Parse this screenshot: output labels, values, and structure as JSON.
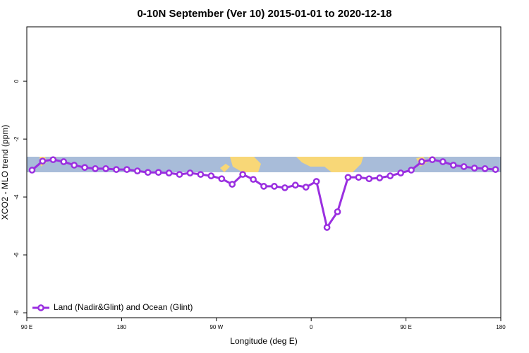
{
  "chart_data": {
    "type": "line",
    "title": "0-10N September (Ver 10)   2015-01-01 to 2020-12-18",
    "x_label": "Longitude (deg E)",
    "y_label": "XCO2 - MLO trend (ppm)",
    "x": [
      95,
      105,
      115,
      125,
      135,
      145,
      155,
      165,
      175,
      185,
      195,
      205,
      215,
      225,
      235,
      245,
      255,
      265,
      275,
      285,
      295,
      305,
      315,
      325,
      335,
      345,
      355,
      365,
      375,
      385,
      395,
      405,
      415,
      425,
      435,
      445,
      455,
      465,
      475,
      485,
      495,
      505,
      515,
      525,
      535
    ],
    "series": [
      {
        "name": "Land (Nadir&Glint) and Ocean (Glint)",
        "color": "#9a2fe0",
        "values": [
          -3.07,
          -2.76,
          -2.71,
          -2.78,
          -2.9,
          -2.98,
          -3.02,
          -3.02,
          -3.05,
          -3.05,
          -3.1,
          -3.15,
          -3.15,
          -3.17,
          -3.22,
          -3.17,
          -3.22,
          -3.27,
          -3.37,
          -3.56,
          -3.22,
          -3.39,
          -3.63,
          -3.63,
          -3.68,
          -3.59,
          -3.66,
          -3.46,
          -5.05,
          -4.51,
          -3.32,
          -3.32,
          -3.37,
          -3.34,
          -3.27,
          -3.17,
          -3.07,
          -2.78,
          -2.71,
          -2.78,
          -2.9,
          -2.95,
          -3.0,
          -3.02,
          -3.05
        ]
      }
    ],
    "xlim": [
      90,
      540
    ],
    "xticks": [
      {
        "value": 90,
        "label": "90 E"
      },
      {
        "value": 180,
        "label": "180"
      },
      {
        "value": 270,
        "label": "90 W"
      },
      {
        "value": 360,
        "label": "0"
      },
      {
        "value": 450,
        "label": "90 E"
      },
      {
        "value": 540,
        "label": "180"
      }
    ],
    "ylim": [
      -8.17,
      1.88
    ],
    "yticks": [
      0,
      -2,
      -4,
      -6,
      -8
    ],
    "legend": "bottom-left"
  }
}
